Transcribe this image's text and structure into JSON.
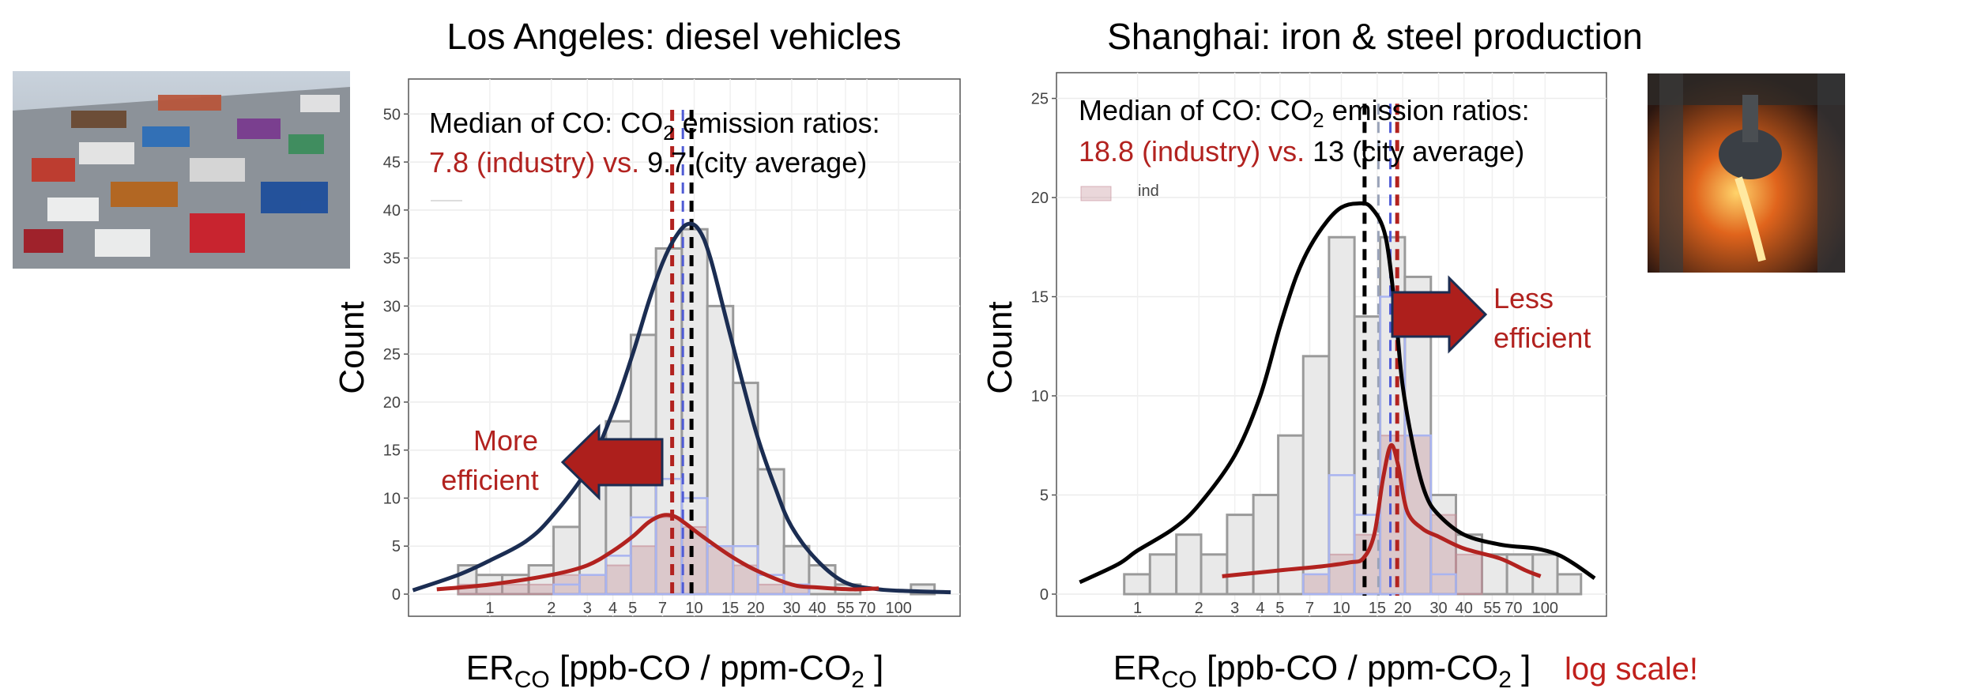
{
  "chart_data": [
    {
      "type": "histogram",
      "title": "Los Angeles: diesel vehicles",
      "ylabel": "Count",
      "xlabel_main": "ER",
      "xlabel_sub": "CO",
      "xlabel_rest": " [ppb-CO / ppm-CO",
      "xlabel_sub2": "2",
      "xlabel_end": " ]",
      "x_scale": "log",
      "ylim": [
        0,
        52
      ],
      "y_ticks": [
        0,
        5,
        10,
        15,
        20,
        25,
        30,
        35,
        40,
        45,
        50
      ],
      "x_ticks": [
        {
          "v": 1,
          "label": "1"
        },
        {
          "v": 2,
          "label": "2"
        },
        {
          "v": 3,
          "label": "3"
        },
        {
          "v": 4,
          "label": "4"
        },
        {
          "v": 5,
          "label": "5"
        },
        {
          "v": 7,
          "label": "7"
        },
        {
          "v": 10,
          "label": "10"
        },
        {
          "v": 15,
          "label": "15"
        },
        {
          "v": 20,
          "label": "20"
        },
        {
          "v": 30,
          "label": "30"
        },
        {
          "v": 40,
          "label": "40"
        },
        {
          "v": 55,
          "label": "55"
        },
        {
          "v": 70,
          "label": "70"
        },
        {
          "v": 100,
          "label": "100"
        }
      ],
      "gray_bins": [
        {
          "x0": 0.7,
          "x1": 0.86,
          "count": 3
        },
        {
          "x0": 0.86,
          "x1": 1.15,
          "count": 2
        },
        {
          "x0": 1.15,
          "x1": 1.55,
          "count": 2
        },
        {
          "x0": 1.55,
          "x1": 2.05,
          "count": 3
        },
        {
          "x0": 2.05,
          "x1": 2.75,
          "count": 7
        },
        {
          "x0": 2.75,
          "x1": 3.7,
          "count": 13
        },
        {
          "x0": 3.7,
          "x1": 4.9,
          "count": 18
        },
        {
          "x0": 4.9,
          "x1": 6.5,
          "count": 27
        },
        {
          "x0": 6.5,
          "x1": 8.7,
          "count": 36
        },
        {
          "x0": 8.7,
          "x1": 11.6,
          "count": 38
        },
        {
          "x0": 11.6,
          "x1": 15.5,
          "count": 30
        },
        {
          "x0": 15.5,
          "x1": 20.5,
          "count": 22
        },
        {
          "x0": 20.5,
          "x1": 27.5,
          "count": 13
        },
        {
          "x0": 27.5,
          "x1": 36.5,
          "count": 5
        },
        {
          "x0": 36.5,
          "x1": 49,
          "count": 3
        },
        {
          "x0": 49,
          "x1": 65,
          "count": 1
        },
        {
          "x0": 65,
          "x1": 87,
          "count": 0
        },
        {
          "x0": 87,
          "x1": 115,
          "count": 0
        },
        {
          "x0": 115,
          "x1": 150,
          "count": 1
        }
      ],
      "blue_bins": [
        {
          "x0": 2.05,
          "x1": 2.75,
          "count": 1
        },
        {
          "x0": 2.75,
          "x1": 3.7,
          "count": 2
        },
        {
          "x0": 3.7,
          "x1": 4.9,
          "count": 4
        },
        {
          "x0": 4.9,
          "x1": 6.5,
          "count": 8
        },
        {
          "x0": 6.5,
          "x1": 8.7,
          "count": 12
        },
        {
          "x0": 8.7,
          "x1": 11.6,
          "count": 10
        },
        {
          "x0": 11.6,
          "x1": 15.5,
          "count": 5
        },
        {
          "x0": 15.5,
          "x1": 20.5,
          "count": 5
        },
        {
          "x0": 20.5,
          "x1": 27.5,
          "count": 2
        },
        {
          "x0": 27.5,
          "x1": 36.5,
          "count": 1
        }
      ],
      "red_bins": [
        {
          "x0": 0.7,
          "x1": 2.05,
          "count": 1
        },
        {
          "x0": 2.05,
          "x1": 3.7,
          "count": 2
        },
        {
          "x0": 3.7,
          "x1": 4.9,
          "count": 3
        },
        {
          "x0": 4.9,
          "x1": 6.5,
          "count": 5
        },
        {
          "x0": 6.5,
          "x1": 8.7,
          "count": 8
        },
        {
          "x0": 8.7,
          "x1": 11.6,
          "count": 7
        },
        {
          "x0": 11.6,
          "x1": 15.5,
          "count": 5
        },
        {
          "x0": 15.5,
          "x1": 20.5,
          "count": 3
        },
        {
          "x0": 20.5,
          "x1": 36.5,
          "count": 1
        }
      ],
      "density_curves": [
        {
          "color": "#1b2d52",
          "points": [
            [
              0.42,
              0.4
            ],
            [
              0.7,
              2
            ],
            [
              1,
              3.5
            ],
            [
              1.5,
              5.5
            ],
            [
              2,
              8
            ],
            [
              3,
              13
            ],
            [
              4,
              19
            ],
            [
              5,
              25
            ],
            [
              6,
              30.5
            ],
            [
              7,
              34.5
            ],
            [
              8,
              37
            ],
            [
              9.2,
              38.5
            ],
            [
              10.5,
              38
            ],
            [
              12,
              35
            ],
            [
              15,
              27
            ],
            [
              20,
              17
            ],
            [
              25,
              11
            ],
            [
              30,
              7
            ],
            [
              40,
              3.5
            ],
            [
              55,
              1.2
            ],
            [
              80,
              0.5
            ],
            [
              120,
              0.3
            ],
            [
              180,
              0.2
            ]
          ]
        },
        {
          "color": "#b2221f",
          "points": [
            [
              0.55,
              0.5
            ],
            [
              1,
              1
            ],
            [
              2,
              2
            ],
            [
              3,
              3
            ],
            [
              4,
              4.5
            ],
            [
              5,
              6
            ],
            [
              6,
              7.5
            ],
            [
              7,
              8.2
            ],
            [
              8,
              8.1
            ],
            [
              9,
              7.4
            ],
            [
              11,
              6
            ],
            [
              15,
              4
            ],
            [
              20,
              2.5
            ],
            [
              30,
              1
            ],
            [
              40,
              0.7
            ],
            [
              60,
              0.5
            ],
            [
              80,
              0.6
            ]
          ]
        }
      ],
      "median_lines": [
        {
          "value": 7.8,
          "color": "#b2221f"
        },
        {
          "value": 8.8,
          "color": "#4f5bd5"
        },
        {
          "value": 9.7,
          "color": "#000000"
        }
      ],
      "annotation": {
        "line1": "Median of CO: CO",
        "line1_sub": "2",
        "line1_rest": " emission ratios:",
        "red_text": "7.8 (industry) vs.",
        "black_text": " 9.7 (city average)"
      },
      "arrow": {
        "direction": "left",
        "label_line1": "More",
        "label_line2": "efficient"
      }
    },
    {
      "type": "histogram",
      "title": "Shanghai: iron & steel production",
      "ylabel": "Count",
      "xlabel_main": "ER",
      "xlabel_sub": "CO",
      "xlabel_rest": " [ppb-CO / ppm-CO",
      "xlabel_sub2": "2",
      "xlabel_end": " ]",
      "x_scale": "log",
      "ylim": [
        0,
        25.5
      ],
      "y_ticks": [
        0,
        5,
        10,
        15,
        20,
        25
      ],
      "x_ticks": [
        {
          "v": 1,
          "label": "1"
        },
        {
          "v": 2,
          "label": "2"
        },
        {
          "v": 3,
          "label": "3"
        },
        {
          "v": 4,
          "label": "4"
        },
        {
          "v": 5,
          "label": "5"
        },
        {
          "v": 7,
          "label": "7"
        },
        {
          "v": 10,
          "label": "10"
        },
        {
          "v": 15,
          "label": "15"
        },
        {
          "v": 20,
          "label": "20"
        },
        {
          "v": 30,
          "label": "30"
        },
        {
          "v": 40,
          "label": "40"
        },
        {
          "v": 55,
          "label": "55"
        },
        {
          "v": 70,
          "label": "70"
        },
        {
          "v": 100,
          "label": "100"
        }
      ],
      "gray_bins": [
        {
          "x0": 0.86,
          "x1": 1.15,
          "count": 1
        },
        {
          "x0": 1.15,
          "x1": 1.55,
          "count": 2
        },
        {
          "x0": 1.55,
          "x1": 2.05,
          "count": 3
        },
        {
          "x0": 2.05,
          "x1": 2.75,
          "count": 2
        },
        {
          "x0": 2.75,
          "x1": 3.7,
          "count": 4
        },
        {
          "x0": 3.7,
          "x1": 4.9,
          "count": 5
        },
        {
          "x0": 4.9,
          "x1": 6.5,
          "count": 8
        },
        {
          "x0": 6.5,
          "x1": 8.7,
          "count": 12
        },
        {
          "x0": 8.7,
          "x1": 11.6,
          "count": 18
        },
        {
          "x0": 11.6,
          "x1": 15.5,
          "count": 14
        },
        {
          "x0": 15.5,
          "x1": 20.5,
          "count": 18
        },
        {
          "x0": 20.5,
          "x1": 27.5,
          "count": 16
        },
        {
          "x0": 27.5,
          "x1": 36.5,
          "count": 5
        },
        {
          "x0": 36.5,
          "x1": 49,
          "count": 3
        },
        {
          "x0": 49,
          "x1": 65,
          "count": 2
        },
        {
          "x0": 65,
          "x1": 87,
          "count": 2
        },
        {
          "x0": 87,
          "x1": 115,
          "count": 2
        },
        {
          "x0": 115,
          "x1": 150,
          "count": 1
        }
      ],
      "blue_bins": [
        {
          "x0": 6.5,
          "x1": 8.7,
          "count": 1
        },
        {
          "x0": 8.7,
          "x1": 11.6,
          "count": 6
        },
        {
          "x0": 11.6,
          "x1": 15.5,
          "count": 4
        },
        {
          "x0": 15.5,
          "x1": 20.5,
          "count": 15
        },
        {
          "x0": 20.5,
          "x1": 27.5,
          "count": 8
        },
        {
          "x0": 27.5,
          "x1": 36.5,
          "count": 1
        }
      ],
      "red_bins": [
        {
          "x0": 6.5,
          "x1": 8.7,
          "count": 1
        },
        {
          "x0": 8.7,
          "x1": 11.6,
          "count": 2
        },
        {
          "x0": 11.6,
          "x1": 15.5,
          "count": 3
        },
        {
          "x0": 15.5,
          "x1": 20.5,
          "count": 8
        },
        {
          "x0": 20.5,
          "x1": 27.5,
          "count": 8
        },
        {
          "x0": 27.5,
          "x1": 36.5,
          "count": 4
        },
        {
          "x0": 36.5,
          "x1": 49,
          "count": 2
        }
      ],
      "density_curves": [
        {
          "color": "#000000",
          "points": [
            [
              0.52,
              0.6
            ],
            [
              0.8,
              1.5
            ],
            [
              1,
              2.2
            ],
            [
              1.5,
              3.3
            ],
            [
              2,
              4.5
            ],
            [
              3,
              7
            ],
            [
              4,
              10
            ],
            [
              5,
              13.5
            ],
            [
              6,
              16
            ],
            [
              7,
              17.5
            ],
            [
              8.5,
              18.8
            ],
            [
              10,
              19.5
            ],
            [
              12,
              19.7
            ],
            [
              14,
              19.5
            ],
            [
              16.5,
              18
            ],
            [
              18.5,
              14
            ],
            [
              20,
              10.5
            ],
            [
              23,
              7
            ],
            [
              26,
              5
            ],
            [
              30,
              4
            ],
            [
              40,
              3
            ],
            [
              60,
              2.5
            ],
            [
              90,
              2.3
            ],
            [
              115,
              2
            ],
            [
              140,
              1.5
            ],
            [
              175,
              0.8
            ]
          ]
        },
        {
          "color": "#b2221f",
          "points": [
            [
              2.6,
              0.9
            ],
            [
              5,
              1.2
            ],
            [
              8,
              1.4
            ],
            [
              11,
              1.6
            ],
            [
              12.8,
              1.8
            ],
            [
              14.5,
              3
            ],
            [
              16,
              5.8
            ],
            [
              17.5,
              7.5
            ],
            [
              19,
              6.5
            ],
            [
              21,
              4.2
            ],
            [
              25,
              3.3
            ],
            [
              30,
              2.9
            ],
            [
              40,
              2.3
            ],
            [
              60,
              1.8
            ],
            [
              80,
              1.2
            ],
            [
              95,
              0.9
            ]
          ]
        }
      ],
      "median_lines": [
        {
          "value": 13,
          "color": "#000000"
        },
        {
          "value": 15.2,
          "color": "#9aa3b8"
        },
        {
          "value": 17.4,
          "color": "#4f5bd5"
        },
        {
          "value": 18.8,
          "color": "#b2221f"
        }
      ],
      "annotation": {
        "line1": "Median of CO: CO",
        "line1_sub": "2",
        "line1_rest": " emission ratios:",
        "red_text": "18.8 (industry) vs.",
        "black_text": " 13 (city average)"
      },
      "arrow": {
        "direction": "right",
        "label_line1": "Less",
        "label_line2": "efficient"
      },
      "legend_fragment": "ind",
      "note": "log scale!"
    }
  ],
  "photos": [
    {
      "subject": "diesel trucks at port terminal"
    },
    {
      "subject": "molten steel pouring in steel mill"
    }
  ]
}
